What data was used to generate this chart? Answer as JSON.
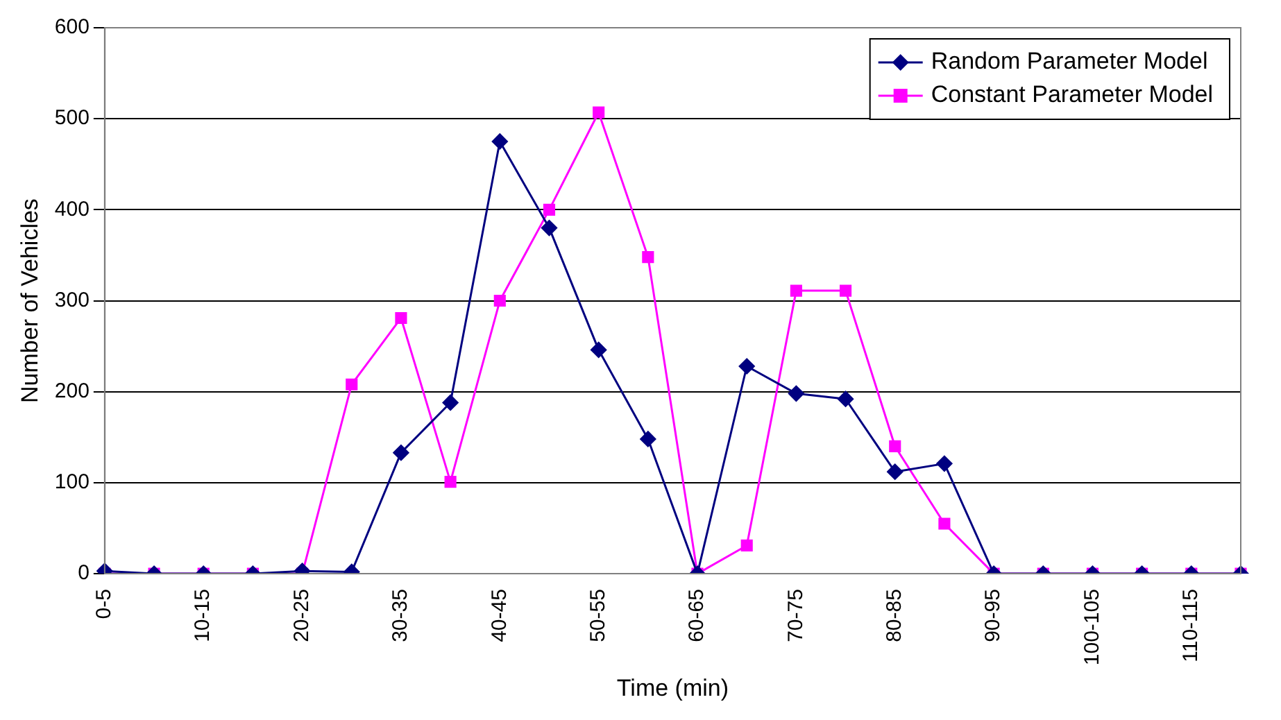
{
  "chart_data": {
    "type": "line",
    "xlabel": "Time (min)",
    "ylabel": "Number of Vehicles",
    "categories": [
      "0-5",
      null,
      "10-15",
      null,
      "20-25",
      null,
      "30-35",
      null,
      "40-45",
      null,
      "50-55",
      null,
      "60-65",
      null,
      "70-75",
      null,
      "80-85",
      null,
      "90-95",
      null,
      "100-105",
      null,
      "110-115",
      null
    ],
    "series": [
      {
        "name": "Random Parameter Model",
        "color": "#000080",
        "marker": "diamond",
        "values": [
          3,
          0,
          0,
          0,
          3,
          2,
          133,
          188,
          475,
          380,
          246,
          148,
          0,
          228,
          198,
          192,
          112,
          121,
          0,
          0,
          0,
          0,
          0,
          0
        ]
      },
      {
        "name": "Constant Parameter Model",
        "color": "#ff00ff",
        "marker": "square",
        "values": [
          0,
          0,
          0,
          0,
          0,
          208,
          281,
          101,
          300,
          400,
          507,
          348,
          0,
          31,
          311,
          311,
          140,
          55,
          0,
          0,
          0,
          0,
          0,
          0
        ]
      }
    ],
    "ylim": [
      0,
      600
    ],
    "yticks": [
      0,
      100,
      200,
      300,
      400,
      500,
      600
    ],
    "grid": "y",
    "legend": "top right",
    "line_style": "solid"
  }
}
